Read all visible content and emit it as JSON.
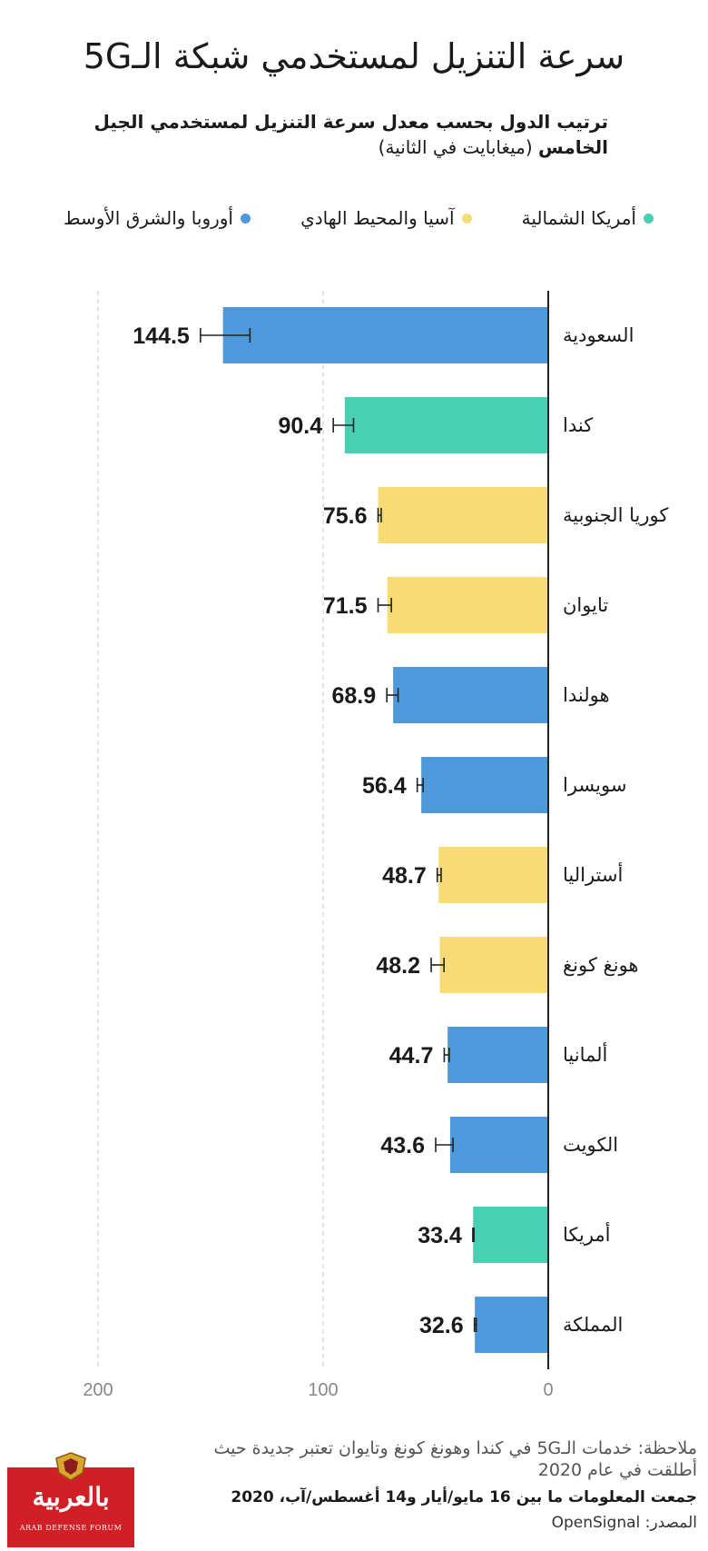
{
  "header": {
    "title": "سرعة التنزيل لمستخدمي شبكة الـ5G",
    "subtitle_bold": "ترتيب الدول بحسب معدل سرعة التنزيل لمستخدمي الجيل الخامس",
    "subtitle_rest": " (ميغابايت في الثانية)"
  },
  "legend": [
    {
      "label": "أوروبا والشرق الأوسط",
      "color": "#4e98dc"
    },
    {
      "label": "آسيا والمحيط الهادي",
      "color": "#f6dc73"
    },
    {
      "label": "أمريكا الشمالية",
      "color": "#49d0b2"
    }
  ],
  "chart_data": {
    "type": "bar",
    "orientation": "horizontal",
    "xlim": [
      0,
      200
    ],
    "x_ticks": [
      "200",
      "100",
      "0"
    ],
    "grid": true,
    "categories": [
      "السعودية",
      "كندا",
      "كوريا الجنوبية",
      "تايوان",
      "هولندا",
      "سويسرا",
      "أستراليا",
      "هونغ كونغ",
      "ألمانيا",
      "الكويت",
      "أمريكا",
      "المملكة"
    ],
    "values": [
      144.5,
      90.4,
      75.6,
      71.5,
      68.9,
      56.4,
      48.7,
      48.2,
      44.7,
      43.6,
      33.4,
      32.6
    ],
    "value_labels": [
      "144.5",
      "90.4",
      "75.6",
      "71.5",
      "68.9",
      "56.4",
      "48.7",
      "48.2",
      "44.7",
      "43.6",
      "33.4",
      "32.6"
    ],
    "error_low": [
      132.5,
      86.5,
      74.2,
      69.7,
      66.7,
      55.6,
      47.6,
      46.3,
      44.0,
      42.3,
      33.0,
      32.0
    ],
    "error_high": [
      154.5,
      95.5,
      75.6,
      75.6,
      71.7,
      58.2,
      49.3,
      52.0,
      46.2,
      50.0,
      33.5,
      32.8
    ],
    "regions": [
      "europe-me",
      "north-america",
      "asia-pacific",
      "asia-pacific",
      "europe-me",
      "europe-me",
      "asia-pacific",
      "asia-pacific",
      "europe-me",
      "europe-me",
      "north-america",
      "europe-me"
    ],
    "region_colors": {
      "europe-me": "#4e98dc",
      "asia-pacific": "#f6dc73",
      "north-america": "#49d0b2"
    }
  },
  "footer": {
    "note": "ملاحظة: خدمات الـ5G في كندا وهونغ كونغ وتايوان تعتبر جديدة حيث أطلقت في عام 2020",
    "collected": "جمعت المعلومات ما بين 16 مايو/أيار و14 أغسطس/آب، 2020",
    "source": "المصدر: OpenSignal"
  },
  "logo": {
    "text": "بالعربية",
    "subtext": "ARAB DEFENSE FORUM"
  }
}
